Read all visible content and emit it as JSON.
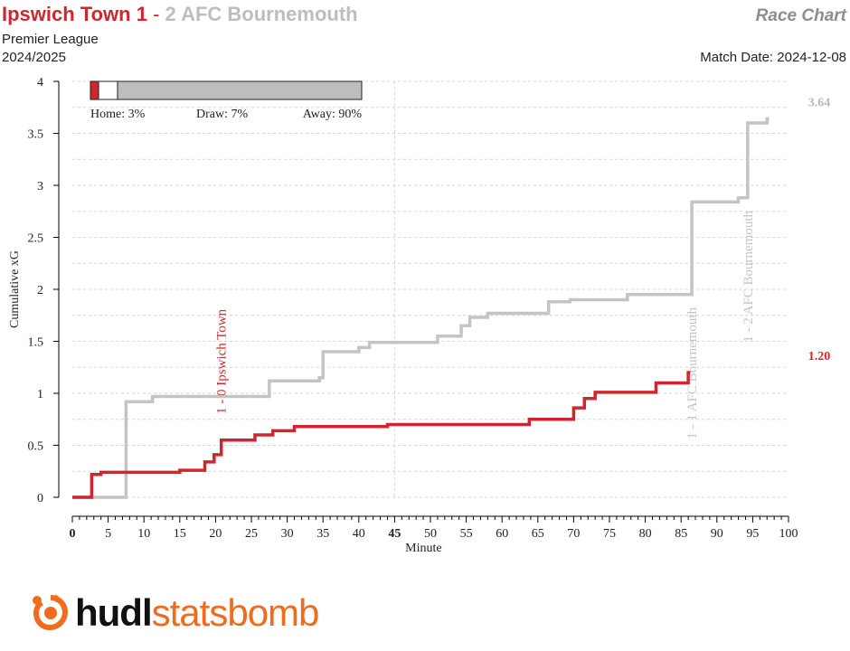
{
  "header": {
    "home_team": "Ipswich Town",
    "home_score": "1",
    "separator": "-",
    "away_score": "2",
    "away_team": "AFC Bournemouth",
    "competition": "Premier League",
    "season": "2024/2025",
    "chart_label": "Race Chart",
    "match_date": "Match Date: 2024-12-08"
  },
  "colors": {
    "home": "#d0262e",
    "away": "#c4c4c4",
    "logo_accent": "#ef6c1f"
  },
  "logo": {
    "icon": "statsbomb-logo-icon",
    "part1": "hudl",
    "part2": "statsbomb"
  },
  "chart_data": {
    "type": "line",
    "step": true,
    "xlabel": "Minute",
    "ylabel": "Cumulative xG",
    "xlim": [
      0,
      100
    ],
    "ylim": [
      0,
      4
    ],
    "xticks": [
      0,
      5,
      10,
      15,
      20,
      25,
      30,
      35,
      40,
      45,
      50,
      55,
      60,
      65,
      70,
      75,
      80,
      85,
      90,
      95,
      100
    ],
    "bold_xticks": [
      0,
      45
    ],
    "yticks": [
      0,
      0.5,
      1,
      1.5,
      2,
      2.5,
      3,
      3.5,
      4
    ],
    "ytick_labels": [
      "0",
      "0.5",
      "1",
      "1.5",
      "2",
      "2.5",
      "3",
      "3.5",
      "4"
    ],
    "grid": "horizontal dashed",
    "halftime_line": 45,
    "series": [
      {
        "name": "Ipswich Town",
        "color": "#d0262e",
        "final_label": "1.20",
        "x": [
          0,
          2.7,
          4,
          15,
          18.5,
          19.8,
          20.8,
          25.5,
          28,
          31,
          44,
          63.8,
          70,
          71.5,
          73,
          81.5,
          86
        ],
        "y": [
          0,
          0.22,
          0.24,
          0.26,
          0.34,
          0.41,
          0.55,
          0.6,
          0.64,
          0.68,
          0.7,
          0.75,
          0.86,
          0.95,
          1.01,
          1.1,
          1.2
        ]
      },
      {
        "name": "AFC Bournemouth",
        "color": "#c4c4c4",
        "final_label": "3.64",
        "x": [
          0,
          7.5,
          11.2,
          27.5,
          34.5,
          35,
          40,
          41.5,
          51,
          54.3,
          55.5,
          58,
          66.5,
          69.5,
          77.5,
          86.5,
          93,
          94.3,
          97
        ],
        "y": [
          0,
          0.92,
          0.97,
          1.12,
          1.15,
          1.4,
          1.44,
          1.49,
          1.55,
          1.65,
          1.73,
          1.77,
          1.88,
          1.9,
          1.95,
          2.84,
          2.88,
          3.6,
          3.64
        ]
      }
    ],
    "goal_annotations": [
      {
        "minute": 20.8,
        "text": "1 - 0 Ipswich Town",
        "team": "home"
      },
      {
        "minute": 86.5,
        "text": "1 - 1 AFC Bournemouth",
        "team": "away"
      },
      {
        "minute": 94.3,
        "text": "1 - 2 AFC Bournemouth",
        "team": "away"
      }
    ],
    "win_probability": {
      "home": 3,
      "draw": 7,
      "away": 90,
      "home_label": "Home: 3%",
      "draw_label": "Draw: 7%",
      "away_label": "Away: 90%"
    }
  }
}
